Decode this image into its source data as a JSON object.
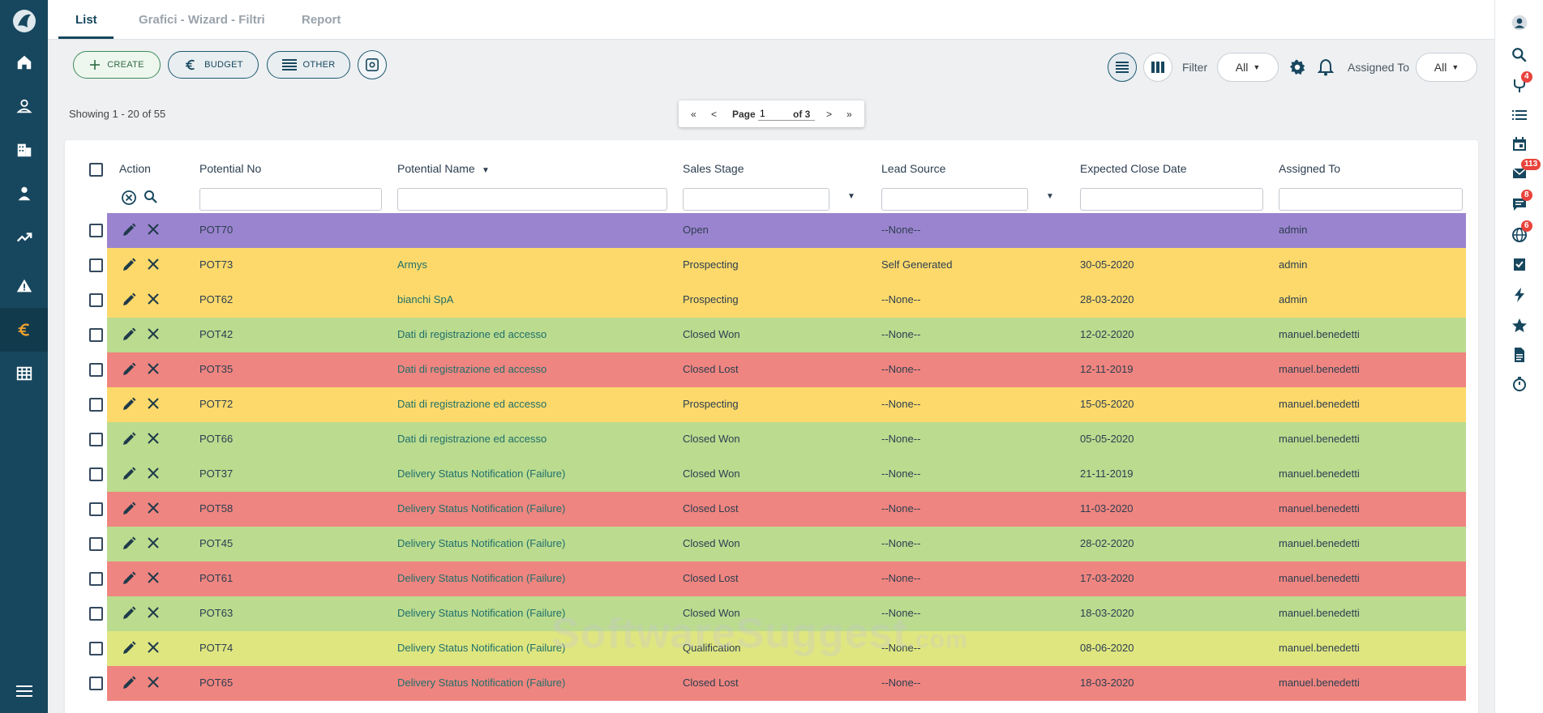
{
  "tabs": [
    {
      "label": "List"
    },
    {
      "label": "Grafici - Wizard - Filtri"
    },
    {
      "label": "Report"
    }
  ],
  "toolbar": {
    "create_label": "CREATE",
    "budget_label": "BUDGET",
    "other_label": "OTHER",
    "filter_label": "Filter",
    "filter_value": "All",
    "assigned_label": "Assigned To",
    "assigned_value": "All"
  },
  "showing": "Showing 1 - 20 of 55",
  "pager": {
    "first": "«",
    "prev": "<",
    "page_label": "Page",
    "page_value": "1",
    "of_label": "of 3",
    "next": ">",
    "last": "»"
  },
  "columns": {
    "action": "Action",
    "potential_no": "Potential No",
    "potential_name": "Potential Name",
    "sales_stage": "Sales Stage",
    "lead_source": "Lead Source",
    "expected_close": "Expected Close Date",
    "assigned_to": "Assigned To"
  },
  "colors": {
    "Open": "#9b84cf",
    "Prospecting": "#fdd96b",
    "Closed Won": "#bbdb8f",
    "Closed Lost": "#ef8580",
    "Qualification": "#dfe680"
  },
  "rows": [
    {
      "no": "POT70",
      "name": "",
      "stage": "Open",
      "source": "--None--",
      "date": "",
      "assigned": "admin"
    },
    {
      "no": "POT73",
      "name": "Armys",
      "stage": "Prospecting",
      "source": "Self Generated",
      "date": "30-05-2020",
      "assigned": "admin"
    },
    {
      "no": "POT62",
      "name": "bianchi SpA",
      "stage": "Prospecting",
      "source": "--None--",
      "date": "28-03-2020",
      "assigned": "admin"
    },
    {
      "no": "POT42",
      "name": "Dati di registrazione ed accesso",
      "stage": "Closed Won",
      "source": "--None--",
      "date": "12-02-2020",
      "assigned": "manuel.benedetti"
    },
    {
      "no": "POT35",
      "name": "Dati di registrazione ed accesso",
      "stage": "Closed Lost",
      "source": "--None--",
      "date": "12-11-2019",
      "assigned": "manuel.benedetti"
    },
    {
      "no": "POT72",
      "name": "Dati di registrazione ed accesso",
      "stage": "Prospecting",
      "source": "--None--",
      "date": "15-05-2020",
      "assigned": "manuel.benedetti"
    },
    {
      "no": "POT66",
      "name": "Dati di registrazione ed accesso",
      "stage": "Closed Won",
      "source": "--None--",
      "date": "05-05-2020",
      "assigned": "manuel.benedetti"
    },
    {
      "no": "POT37",
      "name": "Delivery Status Notification (Failure)",
      "stage": "Closed Won",
      "source": "--None--",
      "date": "21-11-2019",
      "assigned": "manuel.benedetti"
    },
    {
      "no": "POT58",
      "name": "Delivery Status Notification (Failure)",
      "stage": "Closed Lost",
      "source": "--None--",
      "date": "11-03-2020",
      "assigned": "manuel.benedetti"
    },
    {
      "no": "POT45",
      "name": "Delivery Status Notification (Failure)",
      "stage": "Closed Won",
      "source": "--None--",
      "date": "28-02-2020",
      "assigned": "manuel.benedetti"
    },
    {
      "no": "POT61",
      "name": "Delivery Status Notification (Failure)",
      "stage": "Closed Lost",
      "source": "--None--",
      "date": "17-03-2020",
      "assigned": "manuel.benedetti"
    },
    {
      "no": "POT63",
      "name": "Delivery Status Notification (Failure)",
      "stage": "Closed Won",
      "source": "--None--",
      "date": "18-03-2020",
      "assigned": "manuel.benedetti"
    },
    {
      "no": "POT74",
      "name": "Delivery Status Notification (Failure)",
      "stage": "Qualification",
      "source": "--None--",
      "date": "08-06-2020",
      "assigned": "manuel.benedetti"
    },
    {
      "no": "POT65",
      "name": "Delivery Status Notification (Failure)",
      "stage": "Closed Lost",
      "source": "--None--",
      "date": "18-03-2020",
      "assigned": "manuel.benedetti"
    }
  ],
  "badges": {
    "merge": "4",
    "mail": "113",
    "chat": "8",
    "globe": "6"
  },
  "watermark": "SoftwareSuggest",
  "watermark_suffix": ".com"
}
